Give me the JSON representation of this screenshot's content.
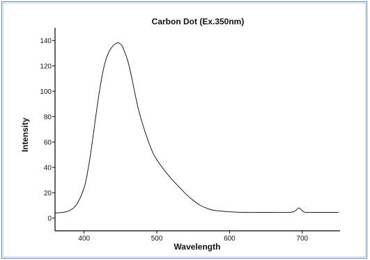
{
  "chart_data": {
    "type": "line",
    "title": "Carbon Dot (Ex.350nm)",
    "xlabel": "Wavelength",
    "ylabel": "Intensity",
    "xlim": [
      360,
      752
    ],
    "ylim": [
      -10,
      150
    ],
    "x_ticks": [
      400,
      500,
      600,
      700
    ],
    "y_ticks": [
      0,
      20,
      40,
      60,
      80,
      100,
      120,
      140
    ],
    "grid": false,
    "series": [
      {
        "color": "#1a1a1a",
        "x": [
          360,
          370,
          380,
          390,
          400,
          405,
          410,
          415,
          420,
          425,
          430,
          435,
          440,
          445,
          448,
          452,
          455,
          460,
          465,
          470,
          475,
          480,
          485,
          490,
          495,
          500,
          510,
          520,
          530,
          540,
          550,
          560,
          570,
          580,
          600,
          620,
          640,
          660,
          680,
          688,
          692,
          695,
          698,
          702,
          706,
          710,
          730,
          750
        ],
        "y": [
          4,
          4.5,
          6,
          11,
          24,
          37,
          55,
          76,
          96,
          113,
          125,
          132,
          136,
          138,
          138,
          136,
          132,
          124,
          112,
          98,
          85,
          75,
          66,
          58,
          51,
          46,
          38,
          31,
          25,
          19,
          14,
          10,
          7.5,
          6,
          5,
          4.5,
          4.5,
          4.5,
          4.5,
          5,
          6.5,
          8,
          7,
          5,
          4.5,
          4.5,
          4.5,
          4.5
        ]
      }
    ]
  }
}
